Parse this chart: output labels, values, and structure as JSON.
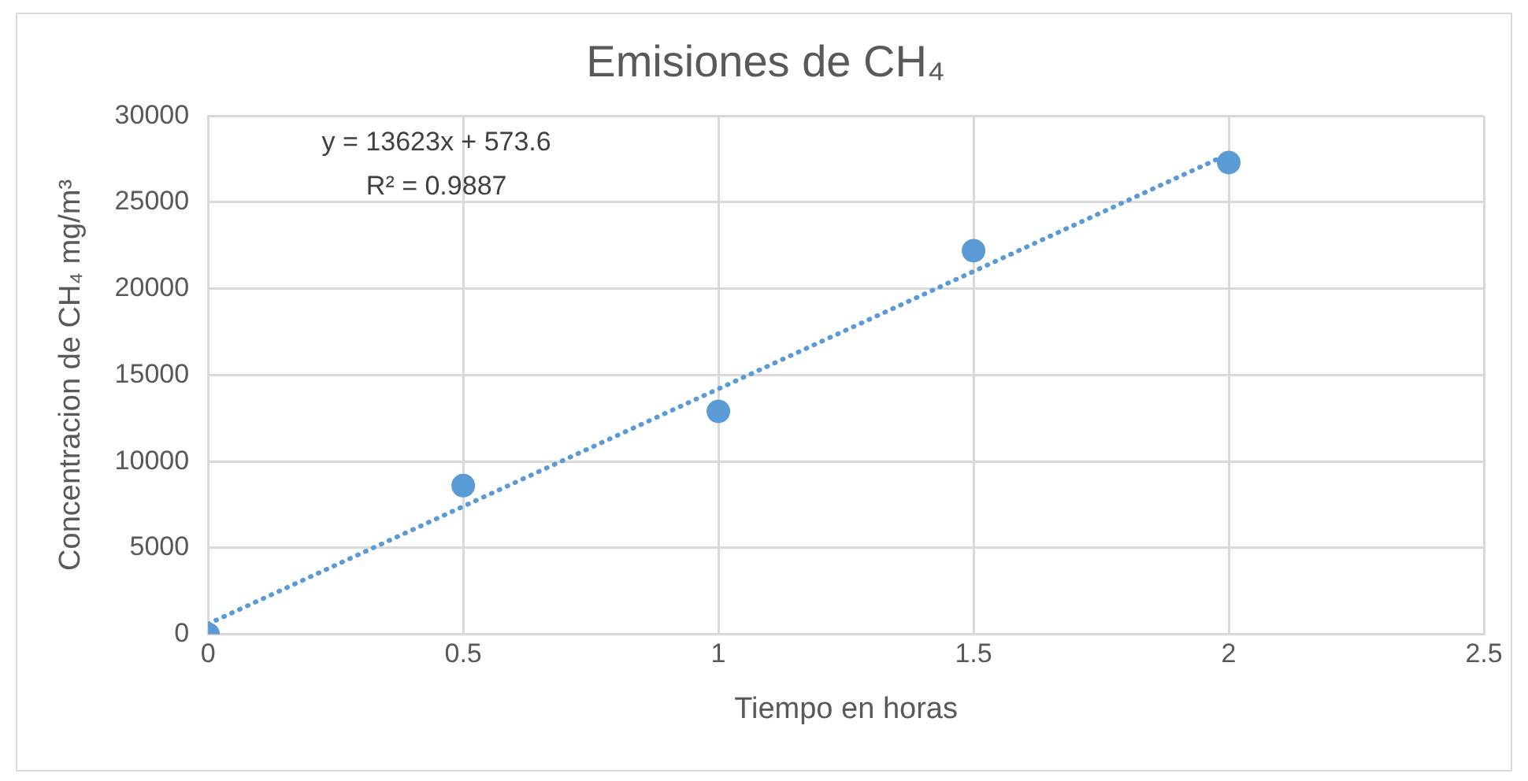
{
  "chart_data": {
    "type": "scatter",
    "title": "Emisiones de CH₄",
    "xlabel": "Tiempo en horas",
    "ylabel": "Concentracion de CH₄ mg/m³",
    "xlim": [
      0,
      2.5
    ],
    "xticks": [
      0,
      0.5,
      1,
      1.5,
      2,
      2.5
    ],
    "ylim": [
      0,
      30000
    ],
    "yticks": [
      0,
      5000,
      10000,
      15000,
      20000,
      25000,
      30000
    ],
    "grid": true,
    "marker": "circle",
    "series": [
      {
        "color": "#5b9bd5",
        "x": [
          0,
          0.5,
          1,
          1.5,
          2
        ],
        "values": [
          0,
          8600,
          12900,
          22200,
          27300
        ]
      },
      {
        "type": "line",
        "color": "#5b9bd5",
        "x": [
          0,
          2
        ],
        "values": [
          600,
          27800
        ],
        "line_style": "dotted",
        "marker": "none"
      }
    ],
    "annotations": [
      "y = 13623x + 573.6",
      "R² = 0.9887"
    ]
  }
}
